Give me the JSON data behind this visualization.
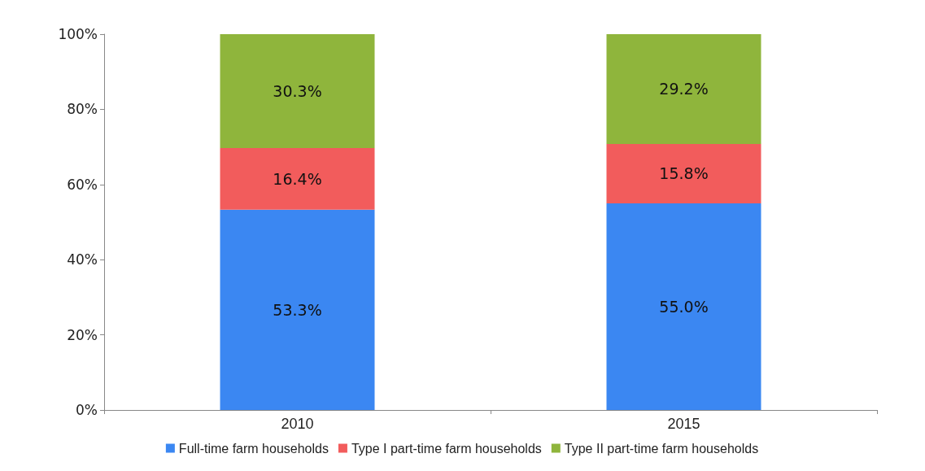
{
  "chart_data": {
    "type": "bar",
    "stacked": true,
    "categories": [
      "2010",
      "2015"
    ],
    "series": [
      {
        "name": "Full-time farm households",
        "color": "#3b87f2",
        "values": [
          53.3,
          55.0
        ],
        "value_labels": [
          "53.3%",
          "55.0%"
        ]
      },
      {
        "name": "Type I part-time farm households",
        "color": "#f25c5c",
        "values": [
          16.4,
          15.8
        ],
        "value_labels": [
          "16.4%",
          "15.8%"
        ]
      },
      {
        "name": "Type II part-time farm households",
        "color": "#8fb53c",
        "values": [
          30.3,
          29.2
        ],
        "value_labels": [
          "30.3%",
          "29.2%"
        ]
      }
    ],
    "ylim": [
      0,
      100
    ],
    "yticks": [
      {
        "value": 0,
        "label": "0%"
      },
      {
        "value": 20,
        "label": "20%"
      },
      {
        "value": 40,
        "label": "40%"
      },
      {
        "value": 60,
        "label": "60%"
      },
      {
        "value": 80,
        "label": "80%"
      },
      {
        "value": 100,
        "label": "100%"
      }
    ],
    "grid": false,
    "legend": "bottom"
  }
}
